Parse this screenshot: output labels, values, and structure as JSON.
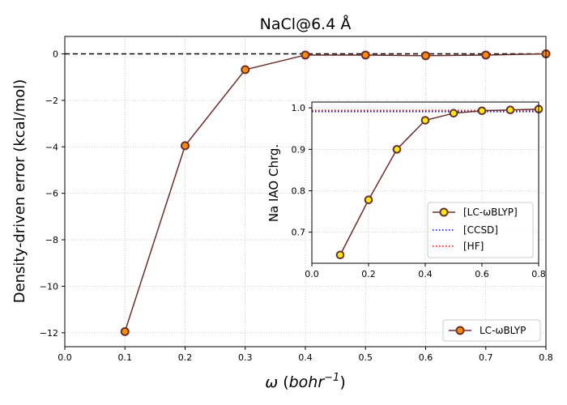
{
  "chart_data": [
    {
      "type": "line",
      "title": "NaCl@6.4 Å",
      "xlabel": "ω (bohr⁻¹)",
      "xlabel_parts": {
        "symbol": "ω",
        "unit": "bohr",
        "exp": "−1"
      },
      "ylabel": "Density-driven error (kcal/mol)",
      "xlim": [
        0.0,
        0.8
      ],
      "ylim": [
        -12.6,
        0.75
      ],
      "xticks": [
        "0.0",
        "0.1",
        "0.2",
        "0.3",
        "0.4",
        "0.5",
        "0.6",
        "0.7",
        "0.8"
      ],
      "yticks": [
        "0",
        "−2",
        "−4",
        "−6",
        "−8",
        "−10",
        "−12"
      ],
      "ytick_values": [
        0,
        -2,
        -4,
        -6,
        -8,
        -10,
        -12
      ],
      "grid": true,
      "reference_line": {
        "y": 0,
        "style": "dashed",
        "color": "#000000"
      },
      "legend_position": "lower-right",
      "series": [
        {
          "name": "LC-ωBLYP",
          "legend_label": "LC-ωBLYP",
          "x": [
            0.1,
            0.2,
            0.3,
            0.4,
            0.5,
            0.6,
            0.7,
            0.8
          ],
          "values": [
            -11.95,
            -3.95,
            -0.68,
            -0.05,
            -0.05,
            -0.08,
            -0.05,
            0.0
          ],
          "line_color": "#6b2e2e",
          "marker_face": "#ff8c00",
          "marker_edge": "#6b2e2e"
        }
      ]
    },
    {
      "type": "line",
      "role": "inset",
      "ylabel": "Na IAO Chrg.",
      "xlim": [
        0.0,
        0.8
      ],
      "ylim": [
        0.625,
        1.014
      ],
      "xticks": [
        "0.0",
        "0.2",
        "0.4",
        "0.6",
        "0.8"
      ],
      "xtick_values": [
        0.0,
        0.2,
        0.4,
        0.6,
        0.8
      ],
      "yticks": [
        "0.7",
        "0.8",
        "0.9",
        "1.0"
      ],
      "ytick_values": [
        0.7,
        0.8,
        0.9,
        1.0
      ],
      "grid": true,
      "legend_position": "lower-right",
      "series": [
        {
          "name": "[LC-ωBLYP]",
          "legend_label": "[LC-ωBLYP]",
          "x": [
            0.1,
            0.2,
            0.3,
            0.4,
            0.5,
            0.6,
            0.7,
            0.8
          ],
          "values": [
            0.645,
            0.778,
            0.9,
            0.97,
            0.987,
            0.993,
            0.995,
            0.997
          ],
          "line_color": "#6b2e2e",
          "marker_face": "#ffee00",
          "marker_edge": "#6b2e2e"
        },
        {
          "name": "[CCSD]",
          "legend_label": "[CCSD]",
          "style": "dotted",
          "x": [
            0.0,
            0.8
          ],
          "values": [
            0.991,
            0.991
          ],
          "line_color": "#0000ff"
        },
        {
          "name": "[HF]",
          "legend_label": "[HF]",
          "style": "dotted",
          "x": [
            0.0,
            0.8
          ],
          "values": [
            0.994,
            0.994
          ],
          "line_color": "#ff0000"
        }
      ]
    }
  ]
}
